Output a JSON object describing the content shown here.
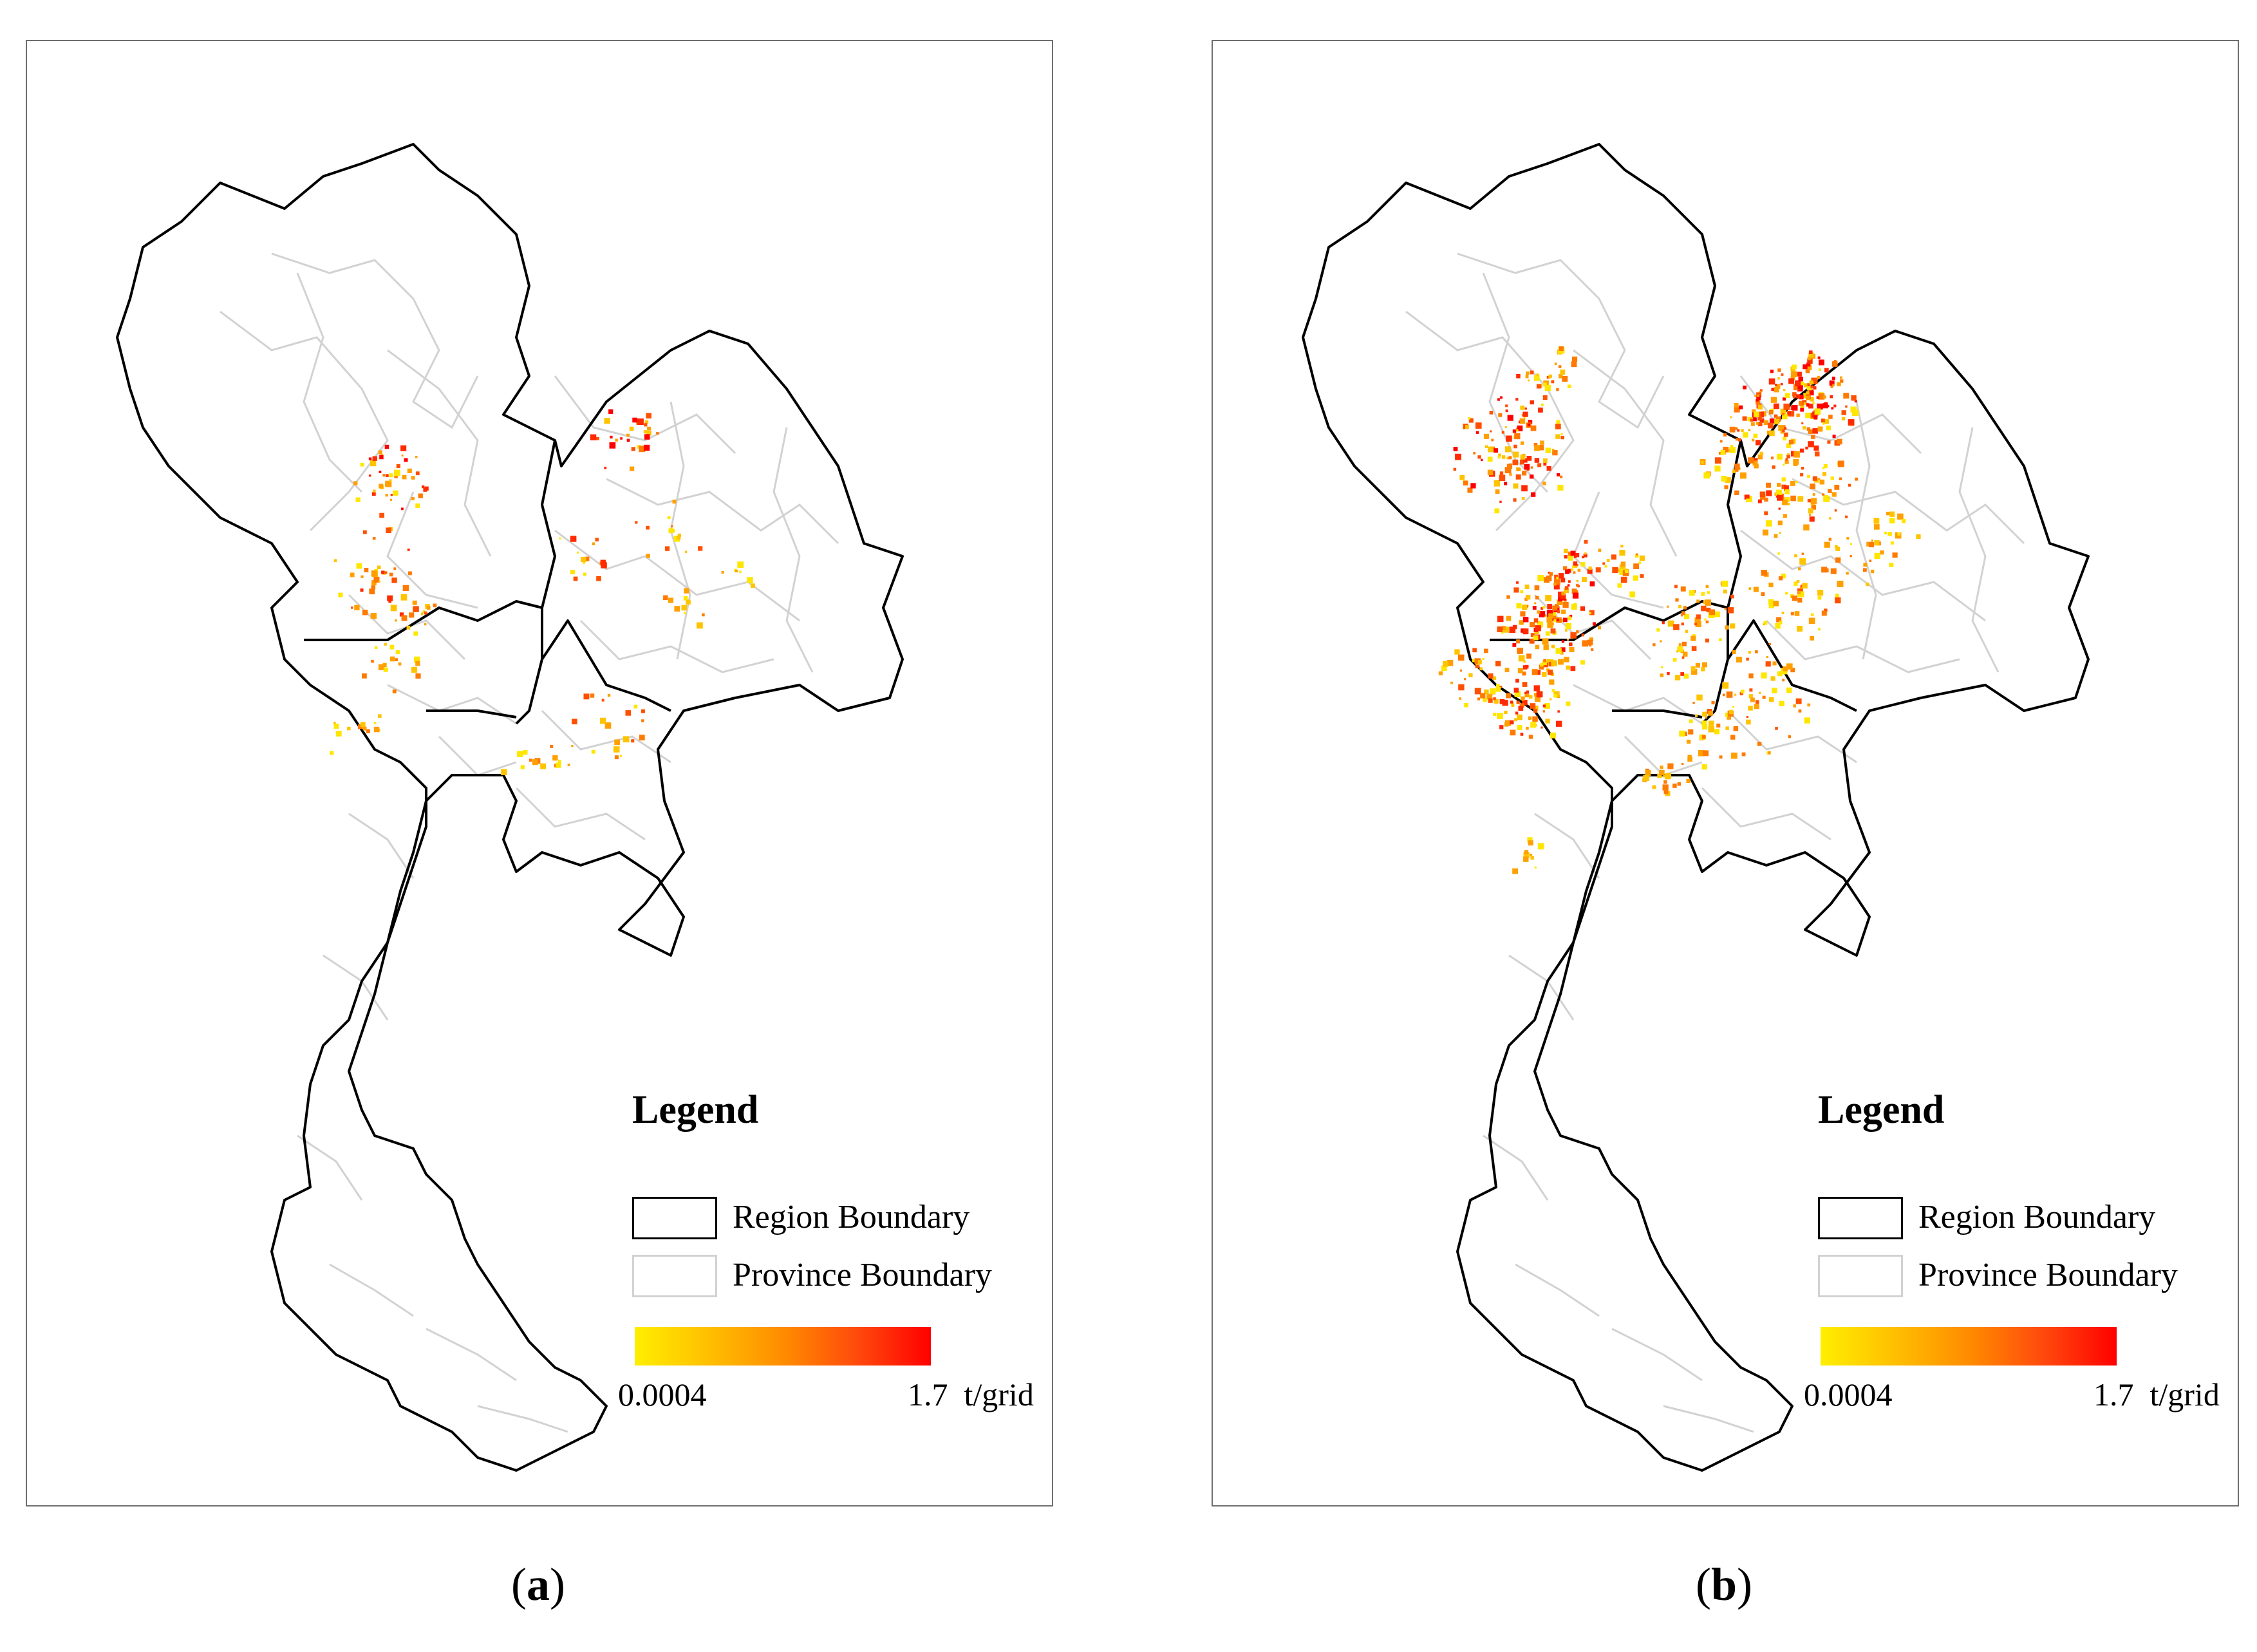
{
  "panels": [
    {
      "id": "a",
      "caption_letter": "a",
      "legend": {
        "title": "Legend",
        "region_label": "Region Boundary",
        "province_label": "Province Boundary",
        "min_label": "0.0004",
        "max_label": "1.7",
        "unit": "t/grid"
      }
    },
    {
      "id": "b",
      "caption_letter": "b",
      "legend": {
        "title": "Legend",
        "region_label": "Region Boundary",
        "province_label": "Province Boundary",
        "min_label": "0.0004",
        "max_label": "1.7",
        "unit": "t/grid"
      }
    }
  ],
  "colors": {
    "region_boundary": "#000000",
    "province_boundary": "#d2d2d2",
    "ramp_low": "#ffee00",
    "ramp_high": "#ff0000",
    "frame": "#6e6e6e"
  },
  "icons": [
    "region-boundary-swatch",
    "province-boundary-swatch",
    "color-ramp"
  ]
}
